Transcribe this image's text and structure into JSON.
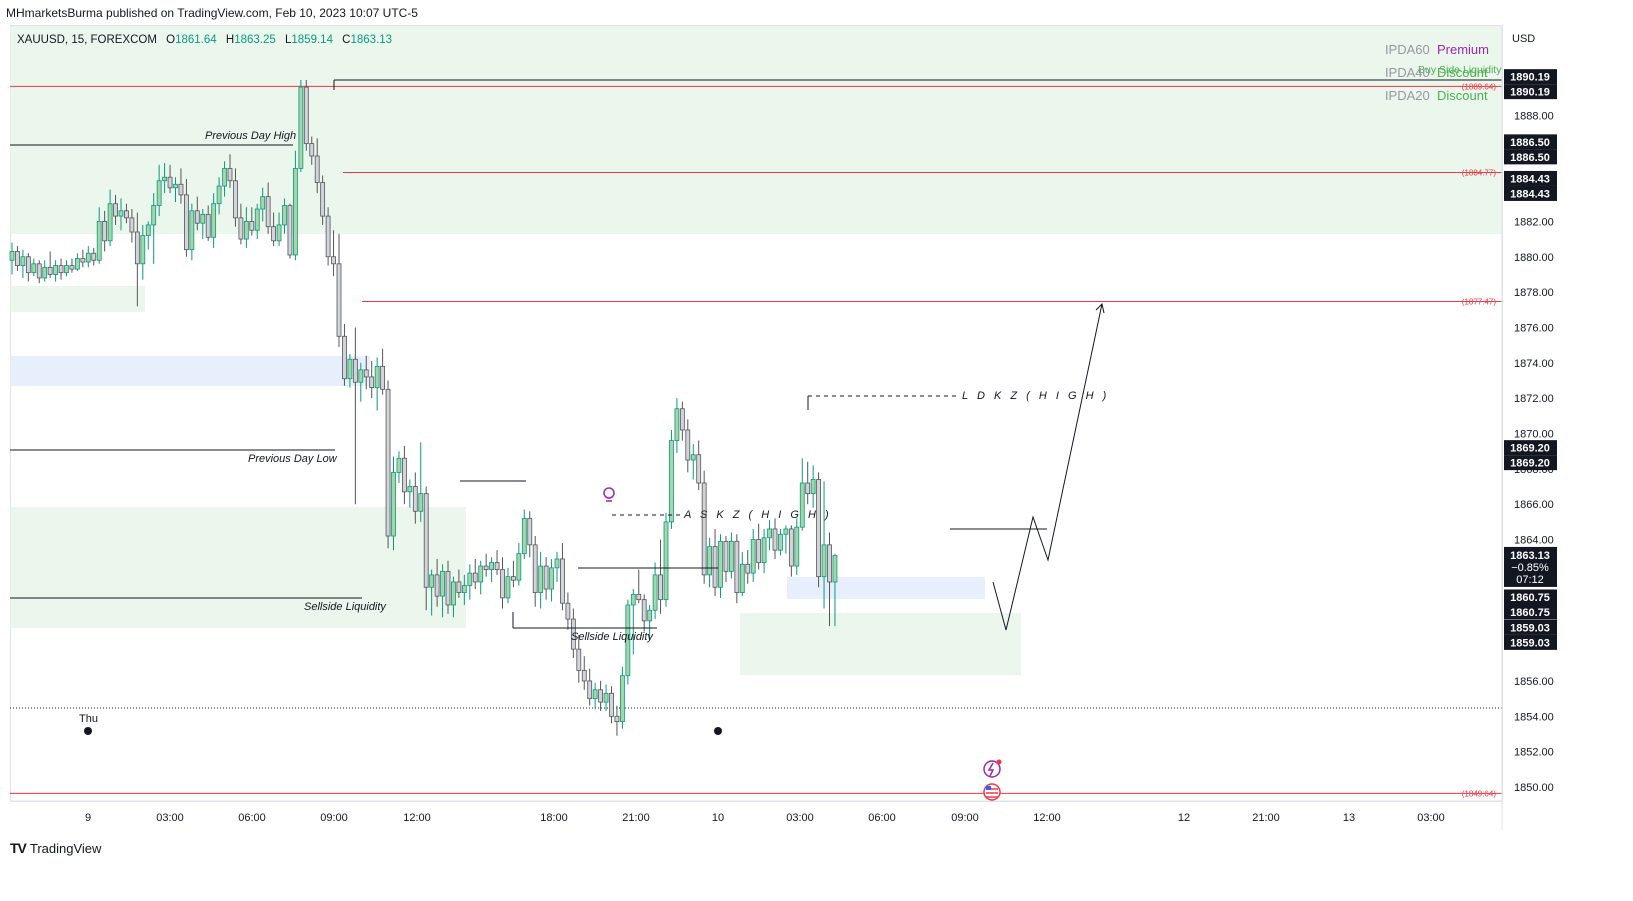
{
  "header": {
    "published": "MHmarketsBurma published on TradingView.com, Feb 10, 2023 10:07 UTC-5"
  },
  "legend": {
    "symbol": "XAUUSD, 15, FOREXCOM",
    "o_label": "O",
    "o": "1861.64",
    "h_label": "H",
    "h": "1863.25",
    "l_label": "L",
    "l": "1859.14",
    "c_label": "C",
    "c": "1863.13"
  },
  "ipda": [
    {
      "key": "IPDA60",
      "value": "Premium",
      "color": "#9c27b0"
    },
    {
      "key": "IPDA40",
      "value": "Discount",
      "color": "#4caf50"
    },
    {
      "key": "IPDA20",
      "value": "Discount",
      "color": "#4caf50"
    }
  ],
  "ipda_overlay_text": "Buy Side Liquidity",
  "currency": "USD",
  "annotations": {
    "previous_day_high": "Previous Day High",
    "previous_day_low": "Previous Day Low",
    "sellside_1": "Sellside Liquidity",
    "sellside_2": "Sellside Liquidity",
    "ldkz": "L D K Z ( H I G H )",
    "askz": "A S K Z ( H I G H )",
    "thu": "Thu"
  },
  "level_labels": [
    {
      "price": 1889.64,
      "text": "(1889.64)"
    },
    {
      "price": 1884.77,
      "text": "(1884.77)"
    },
    {
      "price": 1877.47,
      "text": "(1877.47)"
    },
    {
      "price": 1849.64,
      "text": "(1849.64)"
    }
  ],
  "price_tags": [
    {
      "price": 1890.19,
      "text": "1890.19"
    },
    {
      "price": 1886.5,
      "text": "1886.50"
    },
    {
      "price": 1884.43,
      "text": "1884.43"
    },
    {
      "price": 1869.2,
      "text": "1869.20"
    },
    {
      "price": 1860.75,
      "text": "1860.75"
    },
    {
      "price": 1859.03,
      "text": "1859.03"
    }
  ],
  "current_tag": {
    "price": 1863.13,
    "text": "1863.13",
    "change": "−0.85%",
    "countdown": "07:12"
  },
  "footer": {
    "brand": "TradingView",
    "logo": "TV"
  },
  "chart_data": {
    "type": "candlestick",
    "title": "XAUUSD, 15, FOREXCOM",
    "ylabel": "USD",
    "ylim": [
      1848.5,
      1891.5
    ],
    "y_ticks": [
      1850,
      1852,
      1854,
      1856,
      1858,
      1860,
      1862,
      1864,
      1866,
      1868,
      1870,
      1872,
      1874,
      1876,
      1878,
      1880,
      1882,
      1884,
      1886,
      1888,
      1890
    ],
    "x_ticks": [
      "9",
      "03:00",
      "06:00",
      "09:00",
      "12:00",
      "18:00",
      "21:00",
      "10",
      "03:00",
      "06:00",
      "09:00",
      "12:00",
      "12",
      "21:00",
      "13",
      "03:00"
    ],
    "colors": {
      "up": "#089981",
      "down": "#9e9e9e",
      "support_line": "#f23645"
    },
    "ohlc": [
      [
        1879.8,
        1880.8,
        1879.0,
        1880.3
      ],
      [
        1880.3,
        1880.6,
        1879.2,
        1879.5
      ],
      [
        1879.5,
        1880.4,
        1878.8,
        1880.0
      ],
      [
        1880.0,
        1880.2,
        1878.6,
        1879.1
      ],
      [
        1879.1,
        1879.9,
        1878.9,
        1879.6
      ],
      [
        1879.6,
        1879.8,
        1878.5,
        1878.8
      ],
      [
        1878.8,
        1879.8,
        1878.6,
        1879.4
      ],
      [
        1879.4,
        1880.3,
        1878.8,
        1879.0
      ],
      [
        1879.0,
        1879.8,
        1878.6,
        1879.5
      ],
      [
        1879.5,
        1879.9,
        1878.7,
        1879.1
      ],
      [
        1879.1,
        1879.8,
        1878.9,
        1879.5
      ],
      [
        1879.5,
        1879.9,
        1879.1,
        1879.3
      ],
      [
        1879.3,
        1880.2,
        1879.2,
        1879.9
      ],
      [
        1879.9,
        1880.4,
        1879.4,
        1879.7
      ],
      [
        1879.7,
        1880.6,
        1879.4,
        1880.2
      ],
      [
        1880.2,
        1880.5,
        1879.5,
        1879.8
      ],
      [
        1879.8,
        1882.8,
        1879.6,
        1882.0
      ],
      [
        1882.0,
        1882.6,
        1880.3,
        1880.9
      ],
      [
        1880.9,
        1883.8,
        1880.6,
        1883.0
      ],
      [
        1883.0,
        1883.5,
        1881.8,
        1882.3
      ],
      [
        1882.3,
        1883.3,
        1881.5,
        1882.6
      ],
      [
        1882.6,
        1883.0,
        1881.9,
        1882.2
      ],
      [
        1882.2,
        1882.7,
        1880.8,
        1881.4
      ],
      [
        1881.4,
        1882.5,
        1877.2,
        1879.6
      ],
      [
        1879.6,
        1881.8,
        1878.7,
        1881.2
      ],
      [
        1881.2,
        1882.0,
        1880.4,
        1881.8
      ],
      [
        1881.8,
        1883.6,
        1879.6,
        1882.9
      ],
      [
        1882.9,
        1885.2,
        1882.3,
        1884.3
      ],
      [
        1884.3,
        1885.3,
        1883.6,
        1884.5
      ],
      [
        1884.5,
        1885.2,
        1883.6,
        1883.9
      ],
      [
        1883.9,
        1884.5,
        1883.1,
        1884.1
      ],
      [
        1884.1,
        1885.0,
        1883.0,
        1883.5
      ],
      [
        1883.5,
        1884.4,
        1880.0,
        1880.4
      ],
      [
        1880.4,
        1883.0,
        1879.8,
        1882.6
      ],
      [
        1882.6,
        1883.4,
        1881.5,
        1881.9
      ],
      [
        1881.9,
        1882.7,
        1881.0,
        1882.4
      ],
      [
        1882.4,
        1882.9,
        1880.9,
        1881.1
      ],
      [
        1881.1,
        1883.6,
        1880.5,
        1883.0
      ],
      [
        1883.0,
        1884.5,
        1882.4,
        1884.0
      ],
      [
        1884.0,
        1885.4,
        1883.4,
        1885.0
      ],
      [
        1885.0,
        1885.8,
        1883.9,
        1884.3
      ],
      [
        1884.3,
        1885.0,
        1881.7,
        1882.2
      ],
      [
        1882.2,
        1883.0,
        1880.7,
        1881.0
      ],
      [
        1881.0,
        1882.8,
        1880.5,
        1882.0
      ],
      [
        1882.0,
        1882.8,
        1881.2,
        1881.5
      ],
      [
        1881.5,
        1883.0,
        1881.0,
        1882.7
      ],
      [
        1882.7,
        1883.9,
        1882.0,
        1883.4
      ],
      [
        1883.4,
        1884.2,
        1881.3,
        1881.7
      ],
      [
        1881.7,
        1882.5,
        1880.6,
        1880.9
      ],
      [
        1880.9,
        1882.5,
        1880.6,
        1881.8
      ],
      [
        1881.8,
        1883.3,
        1881.3,
        1882.9
      ],
      [
        1882.9,
        1883.0,
        1879.9,
        1880.1
      ],
      [
        1880.1,
        1886.0,
        1879.8,
        1885.0
      ],
      [
        1885.0,
        1890.0,
        1884.8,
        1889.6
      ],
      [
        1889.6,
        1890.0,
        1886.0,
        1886.4
      ],
      [
        1886.4,
        1886.8,
        1885.2,
        1885.7
      ],
      [
        1885.7,
        1886.7,
        1883.6,
        1884.2
      ],
      [
        1884.2,
        1884.6,
        1881.8,
        1882.3
      ],
      [
        1882.3,
        1882.8,
        1879.5,
        1880.0
      ],
      [
        1880.0,
        1881.5,
        1878.9,
        1879.6
      ],
      [
        1879.6,
        1881.3,
        1874.9,
        1875.5
      ],
      [
        1875.5,
        1876.2,
        1872.7,
        1873.1
      ],
      [
        1873.1,
        1874.5,
        1872.6,
        1874.2
      ],
      [
        1874.2,
        1876.0,
        1866.0,
        1872.9
      ],
      [
        1872.9,
        1874.0,
        1871.8,
        1873.6
      ],
      [
        1873.6,
        1874.4,
        1872.5,
        1873.2
      ],
      [
        1873.2,
        1874.1,
        1872.0,
        1872.6
      ],
      [
        1872.6,
        1874.3,
        1871.3,
        1873.8
      ],
      [
        1873.8,
        1874.8,
        1872.2,
        1872.5
      ],
      [
        1872.5,
        1873.0,
        1863.5,
        1864.2
      ],
      [
        1864.2,
        1868.7,
        1863.4,
        1867.8
      ],
      [
        1867.8,
        1869.0,
        1867.2,
        1868.6
      ],
      [
        1868.6,
        1869.3,
        1866.0,
        1866.7
      ],
      [
        1866.7,
        1867.4,
        1865.8,
        1867.0
      ],
      [
        1867.0,
        1867.8,
        1864.9,
        1865.6
      ],
      [
        1865.6,
        1869.5,
        1865.0,
        1866.6
      ],
      [
        1866.6,
        1867.0,
        1860.0,
        1861.3
      ],
      [
        1861.3,
        1862.3,
        1859.7,
        1862.0
      ],
      [
        1862.0,
        1862.9,
        1860.2,
        1860.8
      ],
      [
        1860.8,
        1862.6,
        1859.6,
        1862.2
      ],
      [
        1862.2,
        1862.8,
        1859.8,
        1860.3
      ],
      [
        1860.3,
        1861.9,
        1859.6,
        1861.6
      ],
      [
        1861.6,
        1862.3,
        1860.7,
        1861.0
      ],
      [
        1861.0,
        1862.0,
        1860.3,
        1861.4
      ],
      [
        1861.4,
        1862.6,
        1860.6,
        1862.1
      ],
      [
        1862.1,
        1862.9,
        1861.2,
        1861.6
      ],
      [
        1861.6,
        1862.8,
        1860.9,
        1862.5
      ],
      [
        1862.5,
        1863.2,
        1861.9,
        1862.3
      ],
      [
        1862.3,
        1863.0,
        1861.6,
        1862.7
      ],
      [
        1862.7,
        1863.4,
        1862.0,
        1862.3
      ],
      [
        1862.3,
        1863.0,
        1860.1,
        1860.7
      ],
      [
        1860.7,
        1862.4,
        1860.4,
        1861.9
      ],
      [
        1861.9,
        1862.8,
        1861.3,
        1861.7
      ],
      [
        1861.7,
        1863.8,
        1861.4,
        1863.2
      ],
      [
        1863.2,
        1865.7,
        1862.9,
        1865.2
      ],
      [
        1865.2,
        1865.6,
        1863.0,
        1863.7
      ],
      [
        1863.7,
        1864.2,
        1860.2,
        1861.0
      ],
      [
        1861.0,
        1863.3,
        1860.1,
        1862.5
      ],
      [
        1862.5,
        1863.0,
        1860.6,
        1861.2
      ],
      [
        1861.2,
        1862.9,
        1860.5,
        1862.4
      ],
      [
        1862.4,
        1863.3,
        1861.6,
        1862.9
      ],
      [
        1862.9,
        1863.8,
        1860.0,
        1860.4
      ],
      [
        1860.4,
        1861.0,
        1858.9,
        1859.5
      ],
      [
        1859.5,
        1860.1,
        1857.3,
        1857.8
      ],
      [
        1857.8,
        1858.6,
        1855.9,
        1856.6
      ],
      [
        1856.6,
        1857.4,
        1855.5,
        1856.0
      ],
      [
        1856.0,
        1856.7,
        1854.6,
        1855.0
      ],
      [
        1855.0,
        1855.9,
        1854.4,
        1855.5
      ],
      [
        1855.5,
        1856.0,
        1854.3,
        1854.8
      ],
      [
        1854.8,
        1855.8,
        1854.3,
        1855.3
      ],
      [
        1855.3,
        1855.7,
        1853.6,
        1854.0
      ],
      [
        1854.0,
        1854.6,
        1852.9,
        1853.7
      ],
      [
        1853.7,
        1856.8,
        1853.3,
        1856.3
      ],
      [
        1856.3,
        1860.6,
        1855.8,
        1860.3
      ],
      [
        1860.3,
        1861.2,
        1857.5,
        1860.9
      ],
      [
        1860.9,
        1862.3,
        1860.4,
        1860.6
      ],
      [
        1860.6,
        1860.9,
        1858.8,
        1859.4
      ],
      [
        1859.4,
        1860.3,
        1858.3,
        1860.0
      ],
      [
        1860.0,
        1862.7,
        1859.5,
        1862.0
      ],
      [
        1862.0,
        1864.0,
        1859.8,
        1860.6
      ],
      [
        1860.6,
        1865.5,
        1860.2,
        1865.0
      ],
      [
        1865.0,
        1870.2,
        1864.6,
        1869.6
      ],
      [
        1869.6,
        1872.0,
        1868.9,
        1871.4
      ],
      [
        1871.4,
        1871.8,
        1869.6,
        1870.2
      ],
      [
        1870.2,
        1870.8,
        1867.8,
        1868.5
      ],
      [
        1868.5,
        1869.4,
        1867.4,
        1868.8
      ],
      [
        1868.8,
        1869.6,
        1866.8,
        1867.2
      ],
      [
        1867.2,
        1867.9,
        1861.5,
        1862.0
      ],
      [
        1862.0,
        1864.1,
        1861.3,
        1863.6
      ],
      [
        1863.6,
        1864.6,
        1860.8,
        1861.3
      ],
      [
        1861.3,
        1864.3,
        1860.7,
        1863.9
      ],
      [
        1863.9,
        1864.2,
        1861.6,
        1862.2
      ],
      [
        1862.2,
        1864.4,
        1861.8,
        1863.9
      ],
      [
        1863.9,
        1864.3,
        1860.4,
        1861.0
      ],
      [
        1861.0,
        1863.3,
        1860.8,
        1862.6
      ],
      [
        1862.6,
        1863.4,
        1861.5,
        1862.1
      ],
      [
        1862.1,
        1864.6,
        1861.6,
        1864.0
      ],
      [
        1864.0,
        1864.9,
        1862.3,
        1862.7
      ],
      [
        1862.7,
        1864.6,
        1862.1,
        1864.1
      ],
      [
        1864.1,
        1865.1,
        1863.4,
        1864.6
      ],
      [
        1864.6,
        1865.2,
        1862.9,
        1863.4
      ],
      [
        1863.4,
        1864.6,
        1863.1,
        1864.3
      ],
      [
        1864.3,
        1864.8,
        1863.2,
        1864.6
      ],
      [
        1864.6,
        1864.8,
        1861.9,
        1862.5
      ],
      [
        1862.5,
        1865.2,
        1862.0,
        1864.7
      ],
      [
        1864.7,
        1868.6,
        1864.5,
        1867.2
      ],
      [
        1867.2,
        1868.4,
        1866.0,
        1866.6
      ],
      [
        1866.6,
        1868.2,
        1865.8,
        1867.4
      ],
      [
        1867.4,
        1867.8,
        1861.3,
        1861.9
      ],
      [
        1861.9,
        1867.3,
        1860.1,
        1863.7
      ],
      [
        1863.7,
        1864.4,
        1859.1,
        1861.6
      ],
      [
        1861.6,
        1863.2,
        1859.1,
        1863.1
      ]
    ],
    "horizontal_levels": [
      1889.64,
      1884.77,
      1877.47,
      1849.64,
      1854.56
    ],
    "projection_path": [
      1859.0,
      1864.8,
      1862.9,
      1877.47
    ]
  }
}
